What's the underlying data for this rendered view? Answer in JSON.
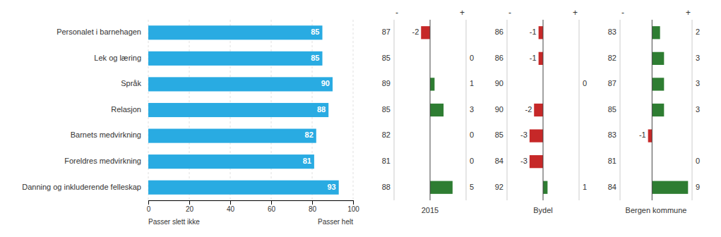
{
  "chart_data": [
    {
      "type": "bar",
      "orientation": "horizontal",
      "categories": [
        "Personalet i barnehagen",
        "Lek og læring",
        "Språk",
        "Relasjon",
        "Barnets medvirkning",
        "Foreldres medvirkning",
        "Danning og inkluderende felleskap"
      ],
      "values": [
        85,
        85,
        90,
        88,
        82,
        81,
        93
      ],
      "color": "#29ABE2",
      "xlim": [
        0,
        100
      ],
      "xticks": [
        0,
        20,
        40,
        60,
        80,
        100
      ],
      "grid": true,
      "data_labels": true,
      "annotations": [
        "Passer slett ikke",
        "Passer helt"
      ]
    },
    {
      "type": "bar",
      "orientation": "horizontal",
      "title": "2015",
      "values": [
        -2,
        0,
        1,
        3,
        0,
        0,
        5
      ],
      "ref_values": [
        87,
        85,
        89,
        85,
        82,
        81,
        88
      ],
      "colors": [
        "#C62828",
        "#2E7D32",
        "#2E7D32",
        "#2E7D32",
        "#2E7D32",
        "#2E7D32",
        "#2E7D32"
      ],
      "xlim": [
        -8,
        8
      ],
      "grid": false,
      "tick_labels": false,
      "data_labels": true,
      "annotations": [
        "-",
        "+"
      ]
    },
    {
      "type": "bar",
      "orientation": "horizontal",
      "title": "Bydel",
      "values": [
        -1,
        -1,
        0,
        -2,
        -3,
        -3,
        1
      ],
      "ref_values": [
        86,
        86,
        90,
        90,
        85,
        84,
        92
      ],
      "colors": [
        "#C62828",
        "#C62828",
        "#2E7D32",
        "#C62828",
        "#C62828",
        "#C62828",
        "#2E7D32"
      ],
      "xlim": [
        -8,
        8
      ],
      "grid": false,
      "tick_labels": false,
      "data_labels": true,
      "annotations": [
        "-",
        "+"
      ]
    },
    {
      "type": "bar",
      "orientation": "horizontal",
      "title": "Bergen kommune",
      "values": [
        2,
        3,
        3,
        3,
        -1,
        0,
        9
      ],
      "ref_values": [
        83,
        82,
        87,
        85,
        83,
        81,
        84
      ],
      "colors": [
        "#2E7D32",
        "#2E7D32",
        "#2E7D32",
        "#2E7D32",
        "#C62828",
        "#2E7D32",
        "#2E7D32"
      ],
      "xlim": [
        -8,
        10
      ],
      "grid": false,
      "tick_labels": false,
      "data_labels": true,
      "annotations": [
        "-",
        "+"
      ]
    }
  ]
}
